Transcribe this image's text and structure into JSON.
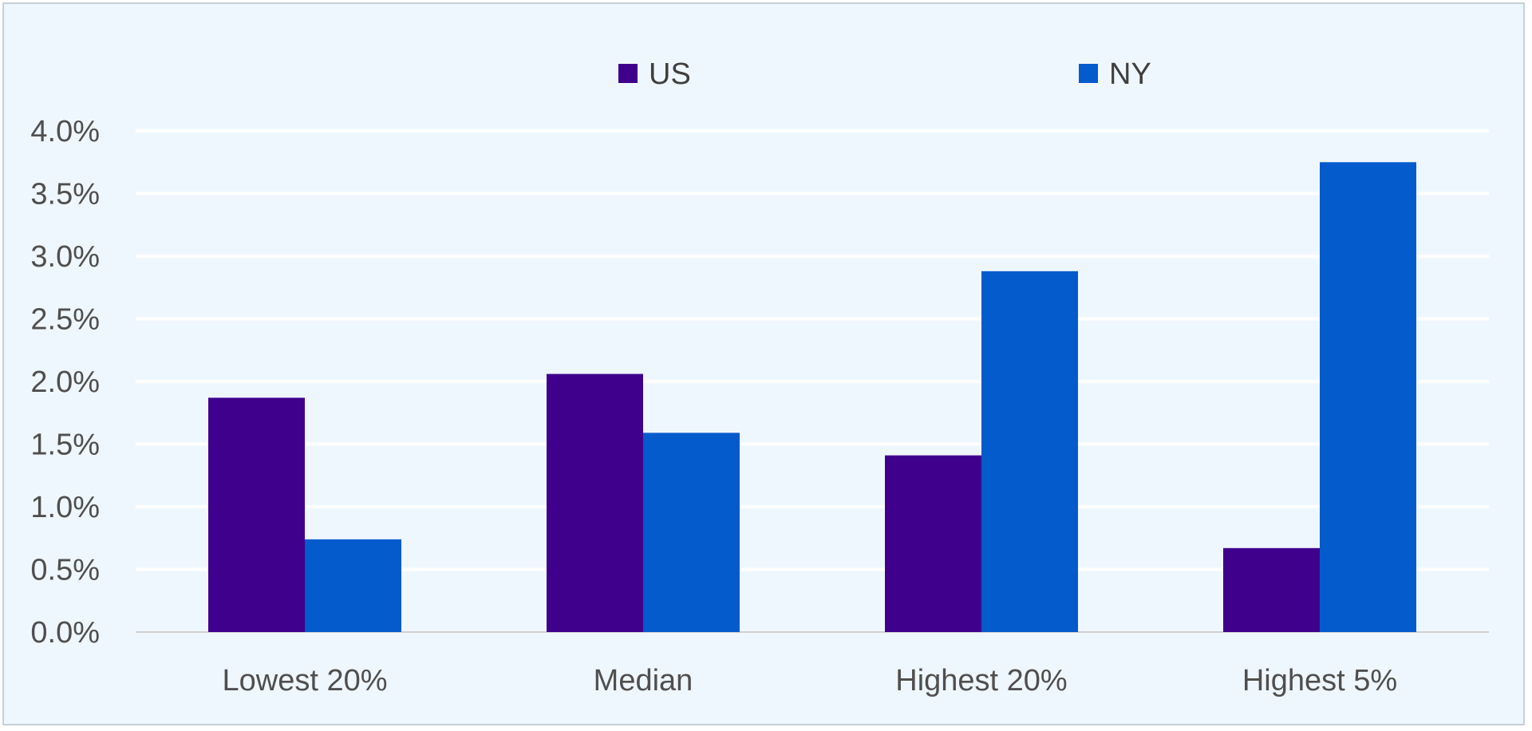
{
  "chart_data": {
    "type": "bar",
    "title": "",
    "xlabel": "",
    "ylabel": "",
    "categories": [
      "Lowest 20%",
      "Median",
      "Highest 20%",
      "Highest 5%"
    ],
    "series": [
      {
        "name": "US",
        "color": "#3f008c",
        "values": [
          1.87,
          2.06,
          1.41,
          0.67
        ]
      },
      {
        "name": "NY",
        "color": "#045bcc",
        "values": [
          0.74,
          1.59,
          2.88,
          3.75
        ]
      }
    ],
    "ylim": [
      0,
      4
    ],
    "yticks": [
      0,
      0.5,
      1,
      1.5,
      2,
      2.5,
      3,
      3.5,
      4
    ],
    "ytick_labels": [
      "0.0%",
      "0.5%",
      "1.0%",
      "1.5%",
      "2.0%",
      "2.5%",
      "3.0%",
      "3.5%",
      "4.0%"
    ],
    "grid": true,
    "legend": "top-center"
  }
}
